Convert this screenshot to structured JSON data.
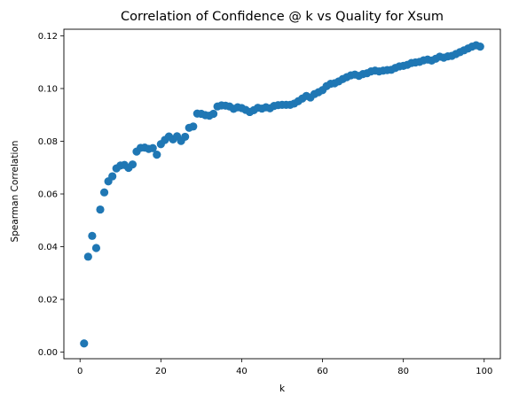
{
  "chart_data": {
    "type": "scatter",
    "title": "Correlation of Confidence @ k vs Quality for Xsum",
    "xlabel": "k",
    "ylabel": "Spearman Correlation",
    "xlim": [
      -4.0,
      104.0
    ],
    "ylim": [
      -0.0025,
      0.1225
    ],
    "xticks": [
      0,
      20,
      40,
      60,
      80,
      100
    ],
    "xtick_labels": [
      "0",
      "20",
      "40",
      "60",
      "80",
      "100"
    ],
    "yticks": [
      0.0,
      0.02,
      0.04,
      0.06,
      0.08,
      0.1,
      0.12
    ],
    "ytick_labels": [
      "0.00",
      "0.02",
      "0.04",
      "0.06",
      "0.08",
      "0.10",
      "0.12"
    ],
    "grid": false,
    "marker_color": "#1f77b4",
    "x": [
      1,
      2,
      3,
      4,
      5,
      6,
      7,
      8,
      9,
      10,
      11,
      12,
      13,
      14,
      15,
      16,
      17,
      18,
      19,
      20,
      21,
      22,
      23,
      24,
      25,
      26,
      27,
      28,
      29,
      30,
      31,
      32,
      33,
      34,
      35,
      36,
      37,
      38,
      39,
      40,
      41,
      42,
      43,
      44,
      45,
      46,
      47,
      48,
      49,
      50,
      51,
      52,
      53,
      54,
      55,
      56,
      57,
      58,
      59,
      60,
      61,
      62,
      63,
      64,
      65,
      66,
      67,
      68,
      69,
      70,
      71,
      72,
      73,
      74,
      75,
      76,
      77,
      78,
      79,
      80,
      81,
      82,
      83,
      84,
      85,
      86,
      87,
      88,
      89,
      90,
      91,
      92,
      93,
      94,
      95,
      96,
      97,
      98,
      99
    ],
    "y": [
      0.0033,
      0.0362,
      0.0441,
      0.0395,
      0.0541,
      0.0606,
      0.0648,
      0.0667,
      0.0697,
      0.0708,
      0.071,
      0.0699,
      0.0712,
      0.0761,
      0.0775,
      0.0776,
      0.0771,
      0.0774,
      0.0749,
      0.0789,
      0.0805,
      0.0818,
      0.0807,
      0.0819,
      0.0801,
      0.0817,
      0.0851,
      0.0856,
      0.0905,
      0.0904,
      0.0899,
      0.0897,
      0.0904,
      0.0932,
      0.0936,
      0.0935,
      0.0932,
      0.0923,
      0.0929,
      0.0926,
      0.0919,
      0.0911,
      0.0918,
      0.0927,
      0.0924,
      0.0929,
      0.0925,
      0.0934,
      0.0937,
      0.0938,
      0.0938,
      0.0938,
      0.0943,
      0.0952,
      0.0962,
      0.0972,
      0.0966,
      0.0979,
      0.0986,
      0.0994,
      0.1009,
      0.1018,
      0.102,
      0.1027,
      0.1036,
      0.1043,
      0.105,
      0.1053,
      0.1048,
      0.1055,
      0.1058,
      0.1065,
      0.1068,
      0.1065,
      0.1068,
      0.107,
      0.1071,
      0.1078,
      0.1084,
      0.1086,
      0.109,
      0.1097,
      0.1099,
      0.1101,
      0.1107,
      0.111,
      0.1106,
      0.1113,
      0.1121,
      0.1117,
      0.1122,
      0.1124,
      0.1131,
      0.1138,
      0.1145,
      0.1152,
      0.1159,
      0.1164,
      0.1159
    ]
  }
}
